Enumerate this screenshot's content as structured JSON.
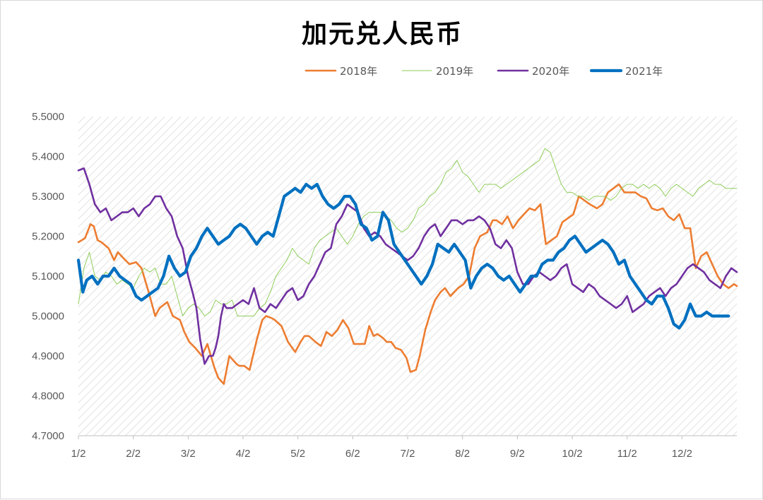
{
  "chart_data": {
    "type": "line",
    "title": "加元兑人民币",
    "xlabel": "",
    "ylabel": "",
    "x_ticks": [
      "1/2",
      "2/2",
      "3/2",
      "4/2",
      "5/2",
      "6/2",
      "7/2",
      "8/2",
      "9/2",
      "10/2",
      "11/2",
      "12/2"
    ],
    "x_domain": [
      0,
      12
    ],
    "y_ticks": [
      "5.5000",
      "5.4000",
      "5.3000",
      "5.2000",
      "5.1000",
      "5.0000",
      "4.9000",
      "4.8000",
      "4.7000"
    ],
    "ylim": [
      4.7,
      5.5
    ],
    "grid": false,
    "legend_position": "top-right",
    "series": [
      {
        "name": "2018年",
        "color": "#ed7d31",
        "x": [
          0,
          0.12,
          0.22,
          0.28,
          0.35,
          0.42,
          0.55,
          0.65,
          0.72,
          0.82,
          0.93,
          1.05,
          1.15,
          1.28,
          1.4,
          1.48,
          1.62,
          1.72,
          1.85,
          1.93,
          2.02,
          2.13,
          2.25,
          2.35,
          2.48,
          2.55,
          2.65,
          2.75,
          2.88,
          2.93,
          3.02,
          3.12,
          3.25,
          3.35,
          3.42,
          3.52,
          3.58,
          3.7,
          3.82,
          3.95,
          4.05,
          4.12,
          4.2,
          4.32,
          4.42,
          4.52,
          4.62,
          4.72,
          4.82,
          4.92,
          5.02,
          5.12,
          5.22,
          5.3,
          5.38,
          5.45,
          5.55,
          5.62,
          5.7,
          5.78,
          5.88,
          5.98,
          6.05,
          6.15,
          6.22,
          6.32,
          6.42,
          6.5,
          6.6,
          6.68,
          6.78,
          6.85,
          6.92,
          7.02,
          7.12,
          7.22,
          7.32,
          7.45,
          7.55,
          7.62,
          7.72,
          7.82,
          7.92,
          8.02,
          8.12,
          8.22,
          8.32,
          8.42,
          8.52,
          8.62,
          8.72,
          8.82,
          8.92,
          9.02,
          9.12,
          9.22,
          9.32,
          9.45,
          9.55,
          9.65,
          9.75,
          9.85,
          9.95,
          10.05,
          10.15,
          10.25,
          10.35,
          10.45,
          10.55,
          10.65,
          10.75,
          10.85,
          10.95,
          11.05,
          11.15,
          11.25,
          11.35,
          11.45,
          11.55,
          11.65,
          11.75,
          11.85,
          11.95,
          12.0
        ],
        "values": [
          5.185,
          5.195,
          5.23,
          5.225,
          5.19,
          5.185,
          5.17,
          5.14,
          5.16,
          5.145,
          5.13,
          5.135,
          5.12,
          5.06,
          5.0,
          5.02,
          5.035,
          5.0,
          4.99,
          4.96,
          4.935,
          4.92,
          4.9,
          4.93,
          4.87,
          4.845,
          4.83,
          4.9,
          4.88,
          4.875,
          4.875,
          4.865,
          4.94,
          4.99,
          5.0,
          4.995,
          4.99,
          4.975,
          4.935,
          4.91,
          4.935,
          4.95,
          4.95,
          4.935,
          4.925,
          4.96,
          4.95,
          4.965,
          4.99,
          4.97,
          4.93,
          4.93,
          4.93,
          4.975,
          4.95,
          4.955,
          4.945,
          4.935,
          4.935,
          4.92,
          4.915,
          4.895,
          4.86,
          4.865,
          4.9,
          4.965,
          5.01,
          5.04,
          5.06,
          5.07,
          5.05,
          5.06,
          5.07,
          5.08,
          5.1,
          5.17,
          5.2,
          5.21,
          5.24,
          5.24,
          5.23,
          5.25,
          5.22,
          5.24,
          5.255,
          5.27,
          5.265,
          5.28,
          5.18,
          5.19,
          5.2,
          5.235,
          5.245,
          5.255,
          5.3,
          5.29,
          5.28,
          5.27,
          5.28,
          5.31,
          5.32,
          5.33,
          5.31,
          5.31,
          5.31,
          5.3,
          5.295,
          5.27,
          5.265,
          5.27,
          5.25,
          5.24,
          5.255,
          5.22,
          5.22,
          5.12,
          5.15,
          5.16,
          5.13,
          5.1,
          5.08,
          5.07,
          5.08,
          5.075
        ]
      },
      {
        "name": "2019年",
        "color": "#8fce5a",
        "x": [
          0,
          0.1,
          0.2,
          0.3,
          0.4,
          0.5,
          0.6,
          0.7,
          0.8,
          0.9,
          1.0,
          1.1,
          1.2,
          1.3,
          1.4,
          1.5,
          1.6,
          1.7,
          1.8,
          1.9,
          2.0,
          2.1,
          2.2,
          2.3,
          2.4,
          2.5,
          2.6,
          2.7,
          2.8,
          2.9,
          3.0,
          3.1,
          3.2,
          3.3,
          3.4,
          3.5,
          3.6,
          3.7,
          3.8,
          3.9,
          4.0,
          4.1,
          4.2,
          4.3,
          4.4,
          4.5,
          4.6,
          4.7,
          4.8,
          4.9,
          5.0,
          5.1,
          5.2,
          5.3,
          5.4,
          5.5,
          5.6,
          5.7,
          5.8,
          5.9,
          6.0,
          6.1,
          6.2,
          6.3,
          6.4,
          6.5,
          6.6,
          6.7,
          6.8,
          6.9,
          7.0,
          7.1,
          7.2,
          7.3,
          7.4,
          7.5,
          7.6,
          7.7,
          7.8,
          7.9,
          8.0,
          8.1,
          8.2,
          8.3,
          8.4,
          8.5,
          8.6,
          8.7,
          8.8,
          8.9,
          9.0,
          9.1,
          9.2,
          9.3,
          9.4,
          9.5,
          9.6,
          9.7,
          9.8,
          9.9,
          10.0,
          10.1,
          10.2,
          10.3,
          10.4,
          10.5,
          10.6,
          10.7,
          10.8,
          10.9,
          11.0,
          11.1,
          11.2,
          11.3,
          11.4,
          11.5,
          11.6,
          11.7,
          11.8,
          11.9,
          12.0
        ],
        "values": [
          5.03,
          5.12,
          5.16,
          5.1,
          5.09,
          5.11,
          5.1,
          5.08,
          5.09,
          5.08,
          5.07,
          5.1,
          5.12,
          5.11,
          5.12,
          5.08,
          5.08,
          5.1,
          5.05,
          5.0,
          5.02,
          5.03,
          5.02,
          5.0,
          5.01,
          5.04,
          5.03,
          5.03,
          5.04,
          5.0,
          5.0,
          5.0,
          5.0,
          5.02,
          5.03,
          5.06,
          5.1,
          5.12,
          5.14,
          5.17,
          5.15,
          5.14,
          5.13,
          5.17,
          5.19,
          5.2,
          5.21,
          5.22,
          5.2,
          5.18,
          5.2,
          5.23,
          5.25,
          5.26,
          5.26,
          5.26,
          5.25,
          5.24,
          5.22,
          5.21,
          5.22,
          5.24,
          5.27,
          5.28,
          5.3,
          5.31,
          5.33,
          5.36,
          5.37,
          5.39,
          5.36,
          5.35,
          5.33,
          5.31,
          5.33,
          5.33,
          5.33,
          5.32,
          5.33,
          5.34,
          5.35,
          5.36,
          5.37,
          5.38,
          5.39,
          5.42,
          5.41,
          5.37,
          5.33,
          5.31,
          5.31,
          5.3,
          5.3,
          5.29,
          5.3,
          5.3,
          5.3,
          5.29,
          5.3,
          5.32,
          5.33,
          5.33,
          5.32,
          5.33,
          5.32,
          5.33,
          5.32,
          5.3,
          5.32,
          5.33,
          5.32,
          5.31,
          5.3,
          5.32,
          5.33,
          5.34,
          5.33,
          5.33,
          5.32,
          5.32,
          5.32
        ]
      },
      {
        "name": "2020年",
        "color": "#7030a0",
        "x": [
          0,
          0.1,
          0.2,
          0.3,
          0.4,
          0.5,
          0.6,
          0.7,
          0.8,
          0.9,
          1.0,
          1.1,
          1.2,
          1.3,
          1.4,
          1.5,
          1.6,
          1.7,
          1.8,
          1.9,
          2.0,
          2.08,
          2.15,
          2.22,
          2.3,
          2.38,
          2.45,
          2.5,
          2.55,
          2.6,
          2.65,
          2.7,
          2.8,
          2.9,
          3.0,
          3.1,
          3.2,
          3.3,
          3.4,
          3.5,
          3.6,
          3.7,
          3.8,
          3.9,
          4.0,
          4.1,
          4.2,
          4.3,
          4.4,
          4.5,
          4.6,
          4.7,
          4.8,
          4.9,
          5.0,
          5.1,
          5.2,
          5.3,
          5.4,
          5.5,
          5.6,
          5.7,
          5.8,
          5.9,
          6.0,
          6.1,
          6.2,
          6.3,
          6.4,
          6.5,
          6.6,
          6.7,
          6.8,
          6.9,
          7.0,
          7.1,
          7.2,
          7.3,
          7.4,
          7.5,
          7.6,
          7.7,
          7.8,
          7.9,
          8.0,
          8.1,
          8.2,
          8.3,
          8.4,
          8.5,
          8.6,
          8.7,
          8.8,
          8.9,
          9.0,
          9.1,
          9.2,
          9.3,
          9.4,
          9.5,
          9.6,
          9.7,
          9.8,
          9.9,
          10.0,
          10.1,
          10.2,
          10.3,
          10.4,
          10.5,
          10.6,
          10.7,
          10.8,
          10.9,
          11.0,
          11.1,
          11.2,
          11.3,
          11.4,
          11.5,
          11.6,
          11.7,
          11.8,
          11.9,
          12.0
        ],
        "values": [
          5.365,
          5.37,
          5.33,
          5.28,
          5.26,
          5.27,
          5.24,
          5.25,
          5.26,
          5.26,
          5.27,
          5.25,
          5.27,
          5.28,
          5.3,
          5.3,
          5.27,
          5.25,
          5.2,
          5.17,
          5.1,
          5.06,
          5.02,
          4.94,
          4.88,
          4.9,
          4.9,
          4.92,
          4.95,
          5.0,
          5.03,
          5.02,
          5.02,
          5.03,
          5.04,
          5.03,
          5.07,
          5.02,
          5.01,
          5.03,
          5.02,
          5.04,
          5.06,
          5.07,
          5.04,
          5.05,
          5.08,
          5.1,
          5.13,
          5.16,
          5.17,
          5.23,
          5.25,
          5.28,
          5.27,
          5.26,
          5.22,
          5.2,
          5.21,
          5.2,
          5.18,
          5.17,
          5.16,
          5.15,
          5.14,
          5.15,
          5.17,
          5.2,
          5.22,
          5.23,
          5.2,
          5.22,
          5.24,
          5.24,
          5.23,
          5.24,
          5.24,
          5.25,
          5.24,
          5.22,
          5.18,
          5.17,
          5.19,
          5.17,
          5.11,
          5.08,
          5.08,
          5.1,
          5.11,
          5.1,
          5.09,
          5.1,
          5.12,
          5.13,
          5.08,
          5.07,
          5.06,
          5.08,
          5.07,
          5.05,
          5.04,
          5.03,
          5.02,
          5.03,
          5.05,
          5.01,
          5.02,
          5.03,
          5.05,
          5.06,
          5.07,
          5.05,
          5.07,
          5.08,
          5.1,
          5.12,
          5.13,
          5.12,
          5.11,
          5.09,
          5.08,
          5.07,
          5.1,
          5.12,
          5.11
        ]
      },
      {
        "name": "2021年",
        "color": "#0070c0",
        "x": [
          0,
          0.08,
          0.15,
          0.25,
          0.35,
          0.45,
          0.55,
          0.65,
          0.75,
          0.85,
          0.95,
          1.05,
          1.15,
          1.25,
          1.35,
          1.45,
          1.55,
          1.65,
          1.75,
          1.85,
          1.95,
          2.05,
          2.15,
          2.25,
          2.35,
          2.45,
          2.55,
          2.65,
          2.75,
          2.85,
          2.95,
          3.05,
          3.15,
          3.25,
          3.35,
          3.45,
          3.55,
          3.65,
          3.75,
          3.85,
          3.95,
          4.05,
          4.15,
          4.25,
          4.35,
          4.45,
          4.55,
          4.65,
          4.75,
          4.85,
          4.95,
          5.05,
          5.15,
          5.25,
          5.35,
          5.45,
          5.55,
          5.65,
          5.75,
          5.85,
          5.95,
          6.05,
          6.15,
          6.25,
          6.35,
          6.45,
          6.55,
          6.65,
          6.75,
          6.85,
          6.95,
          7.05,
          7.15,
          7.25,
          7.35,
          7.45,
          7.55,
          7.65,
          7.75,
          7.85,
          7.95,
          8.05,
          8.15,
          8.25,
          8.35,
          8.45,
          8.55,
          8.65,
          8.75,
          8.85,
          8.95,
          9.05,
          9.15,
          9.25,
          9.35,
          9.45,
          9.55,
          9.65,
          9.75,
          9.85,
          9.95,
          10.05,
          10.15,
          10.25,
          10.35,
          10.45,
          10.55,
          10.65,
          10.75,
          10.85,
          10.95,
          11.05,
          11.15,
          11.25,
          11.35,
          11.45,
          11.55,
          11.65,
          11.75,
          11.85
        ],
        "values": [
          5.14,
          5.06,
          5.09,
          5.1,
          5.08,
          5.1,
          5.1,
          5.12,
          5.1,
          5.09,
          5.08,
          5.05,
          5.04,
          5.05,
          5.06,
          5.07,
          5.1,
          5.15,
          5.12,
          5.1,
          5.11,
          5.15,
          5.17,
          5.2,
          5.22,
          5.2,
          5.18,
          5.19,
          5.2,
          5.22,
          5.23,
          5.22,
          5.2,
          5.18,
          5.2,
          5.21,
          5.2,
          5.25,
          5.3,
          5.31,
          5.32,
          5.31,
          5.33,
          5.32,
          5.33,
          5.3,
          5.28,
          5.27,
          5.28,
          5.3,
          5.3,
          5.28,
          5.23,
          5.22,
          5.19,
          5.2,
          5.26,
          5.24,
          5.18,
          5.16,
          5.14,
          5.12,
          5.1,
          5.08,
          5.1,
          5.13,
          5.18,
          5.17,
          5.16,
          5.18,
          5.16,
          5.14,
          5.07,
          5.1,
          5.12,
          5.13,
          5.12,
          5.1,
          5.09,
          5.1,
          5.08,
          5.06,
          5.08,
          5.1,
          5.1,
          5.13,
          5.14,
          5.14,
          5.16,
          5.17,
          5.19,
          5.2,
          5.18,
          5.16,
          5.17,
          5.18,
          5.19,
          5.18,
          5.16,
          5.13,
          5.14,
          5.1,
          5.08,
          5.06,
          5.04,
          5.03,
          5.05,
          5.05,
          5.02,
          4.98,
          4.97,
          4.99,
          5.03,
          5.0,
          5.0,
          5.01,
          5.0,
          5.0,
          5.0,
          5.0
        ]
      }
    ]
  }
}
